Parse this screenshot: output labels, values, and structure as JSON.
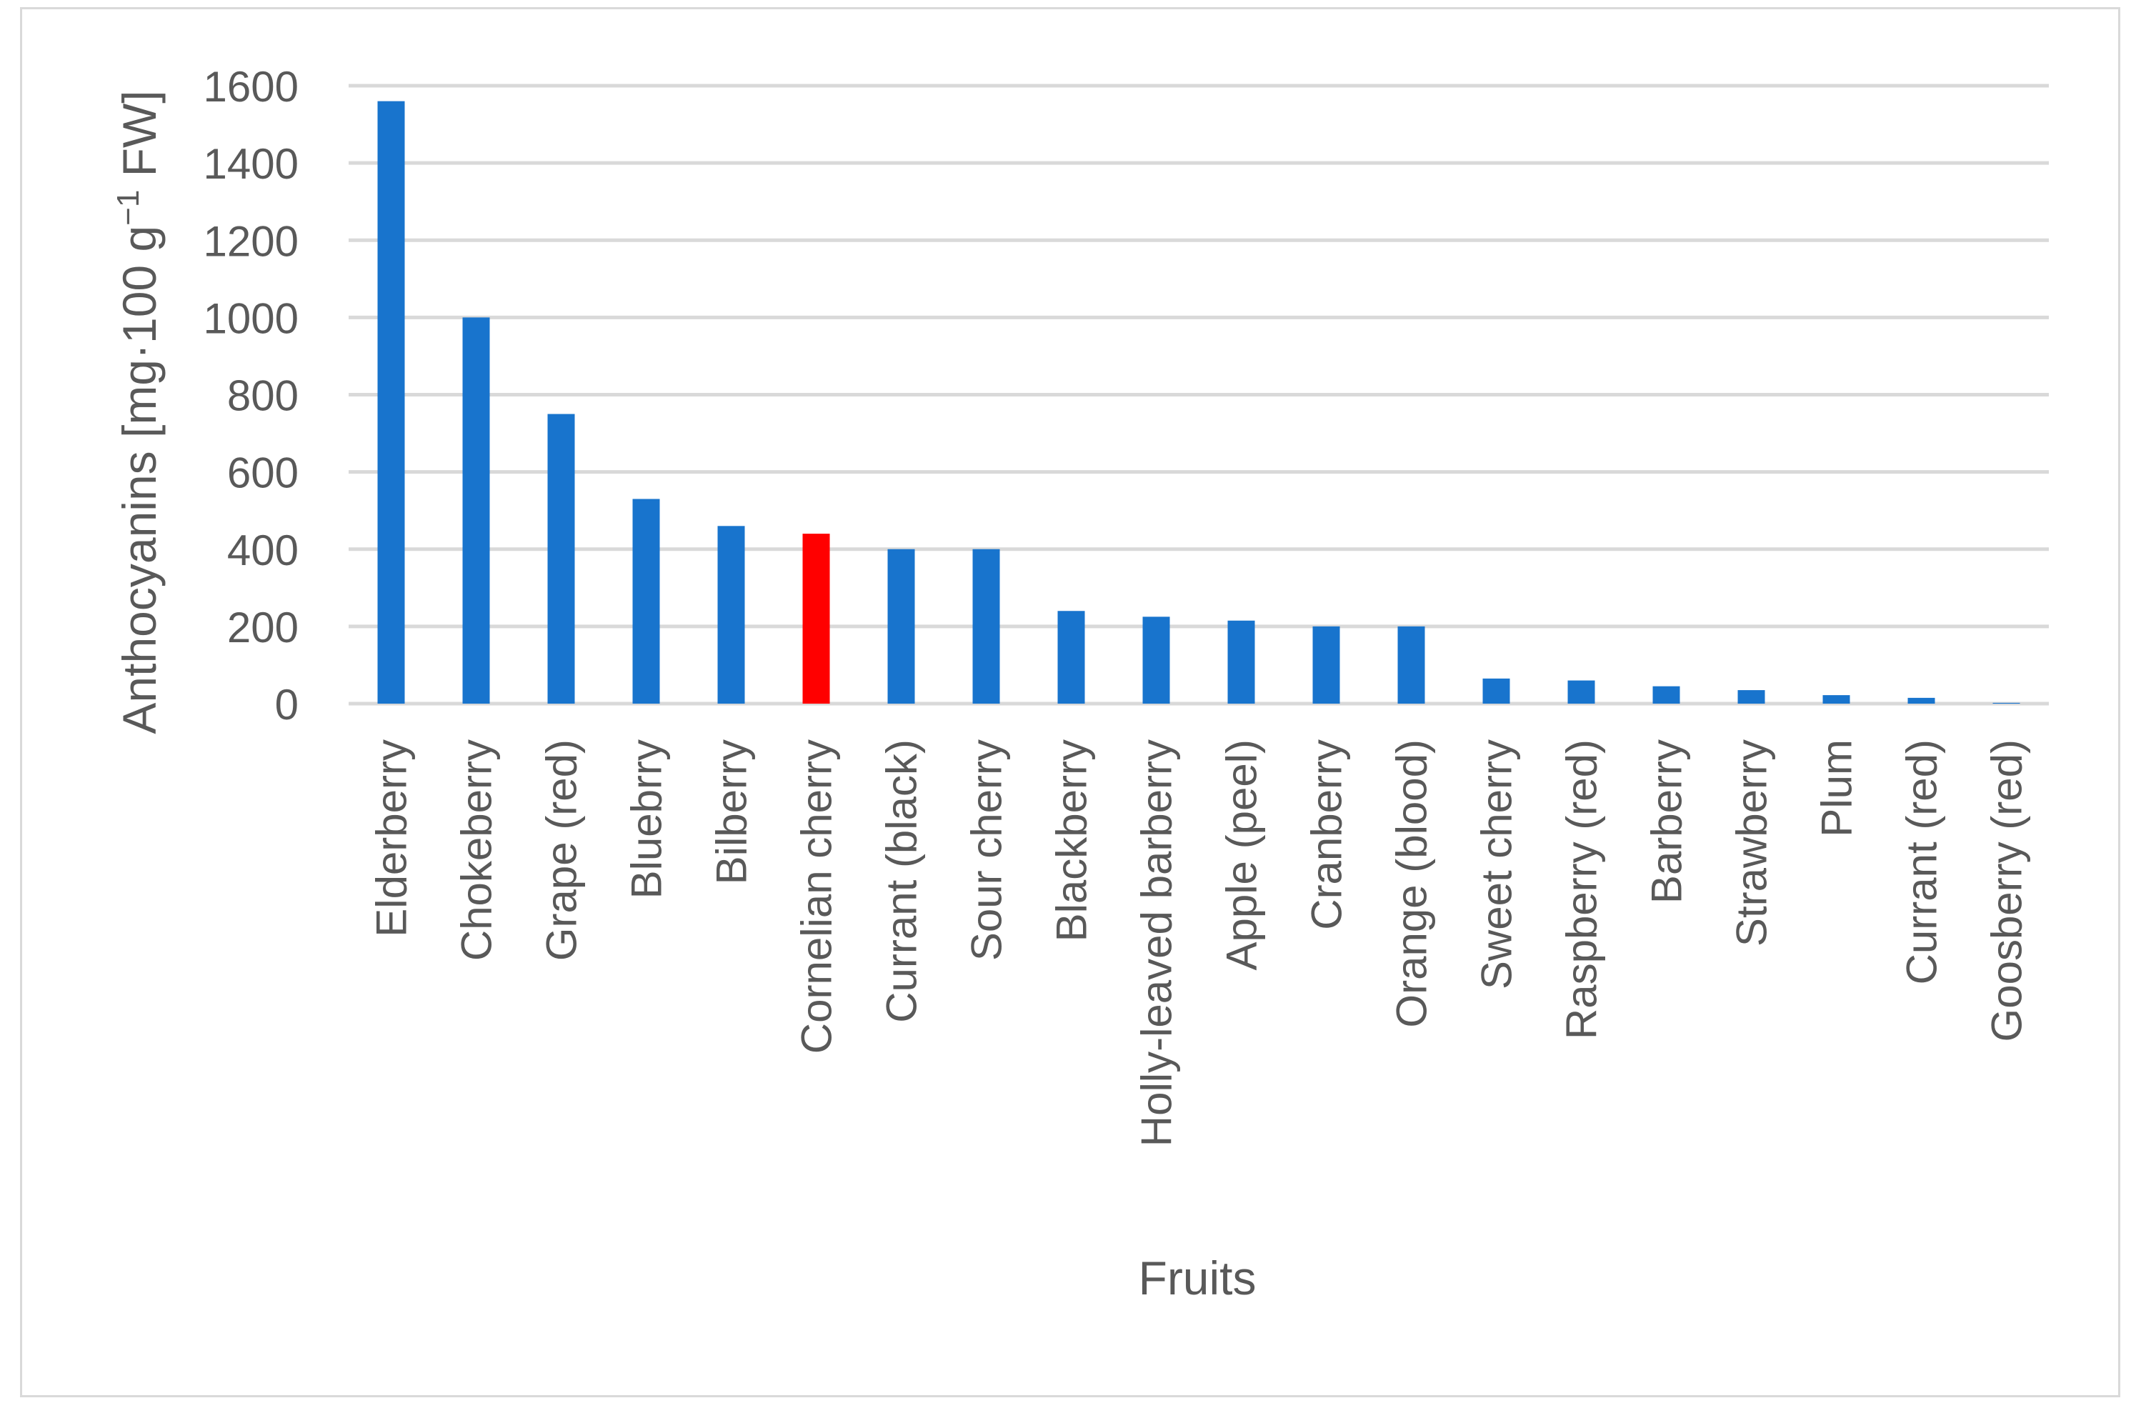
{
  "chart_data": {
    "type": "bar",
    "title": "",
    "xlabel": "Fruits",
    "ylabel": {
      "prefix": "Anthocyanins [mg·100 g",
      "superscript": "−1",
      "suffix": " FW]"
    },
    "ylim": [
      0,
      1600
    ],
    "yticks": [
      0,
      200,
      400,
      600,
      800,
      1000,
      1200,
      1400,
      1600
    ],
    "grid": true,
    "legend": "none",
    "bar_color": "#1874cd",
    "highlight_color": "#ff0000",
    "highlight_category": "Cornelian cherry",
    "categories": [
      "Elderberry",
      "Chokeberry",
      "Grape (red)",
      "Bluebrry",
      "Bilberry",
      "Cornelian cherry",
      "Currant (black)",
      "Sour cherry",
      "Blackberry",
      "Holly-leaved barberry",
      "Apple (peel)",
      "Cranberry",
      "Orange (blood)",
      "Sweet cherry",
      "Raspberry (red)",
      "Barberry",
      "Strawberry",
      "Plum",
      "Currant (red)",
      "Goosberry (red)"
    ],
    "values": [
      1560,
      1000,
      750,
      530,
      460,
      440,
      400,
      400,
      240,
      225,
      215,
      200,
      200,
      65,
      60,
      45,
      35,
      22,
      15,
      2
    ]
  }
}
